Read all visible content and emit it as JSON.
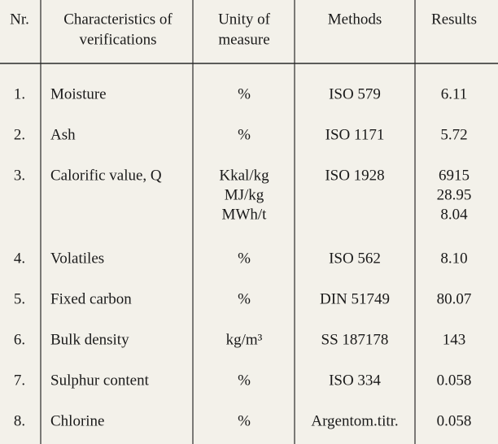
{
  "table": {
    "header": [
      "Nr.",
      [
        "Characteristics of",
        "verifications"
      ],
      [
        "Unity of",
        "measure"
      ],
      "Methods",
      "Results"
    ],
    "rows": [
      [
        "1.",
        "Moisture",
        "%",
        "ISO 579",
        "6.11"
      ],
      [
        "2.",
        "Ash",
        "%",
        "ISO 1171",
        "5.72"
      ],
      [
        "3.",
        "Calorific value, Q",
        [
          "Kkal/kg",
          "MJ/kg",
          "MWh/t"
        ],
        "ISO 1928",
        [
          "6915",
          "28.95",
          "8.04"
        ]
      ],
      [
        "4.",
        "Volatiles",
        "%",
        "ISO 562",
        "8.10"
      ],
      [
        "5.",
        "Fixed carbon",
        "%",
        "DIN 51749",
        "80.07"
      ],
      [
        "6.",
        "Bulk density",
        "kg/m³",
        "SS 187178",
        "143"
      ],
      [
        "7.",
        "Sulphur content",
        "%",
        "ISO 334",
        "0.058"
      ],
      [
        "8.",
        "Chlorine",
        "%",
        "Argentom.titr.",
        "0.058"
      ]
    ]
  }
}
